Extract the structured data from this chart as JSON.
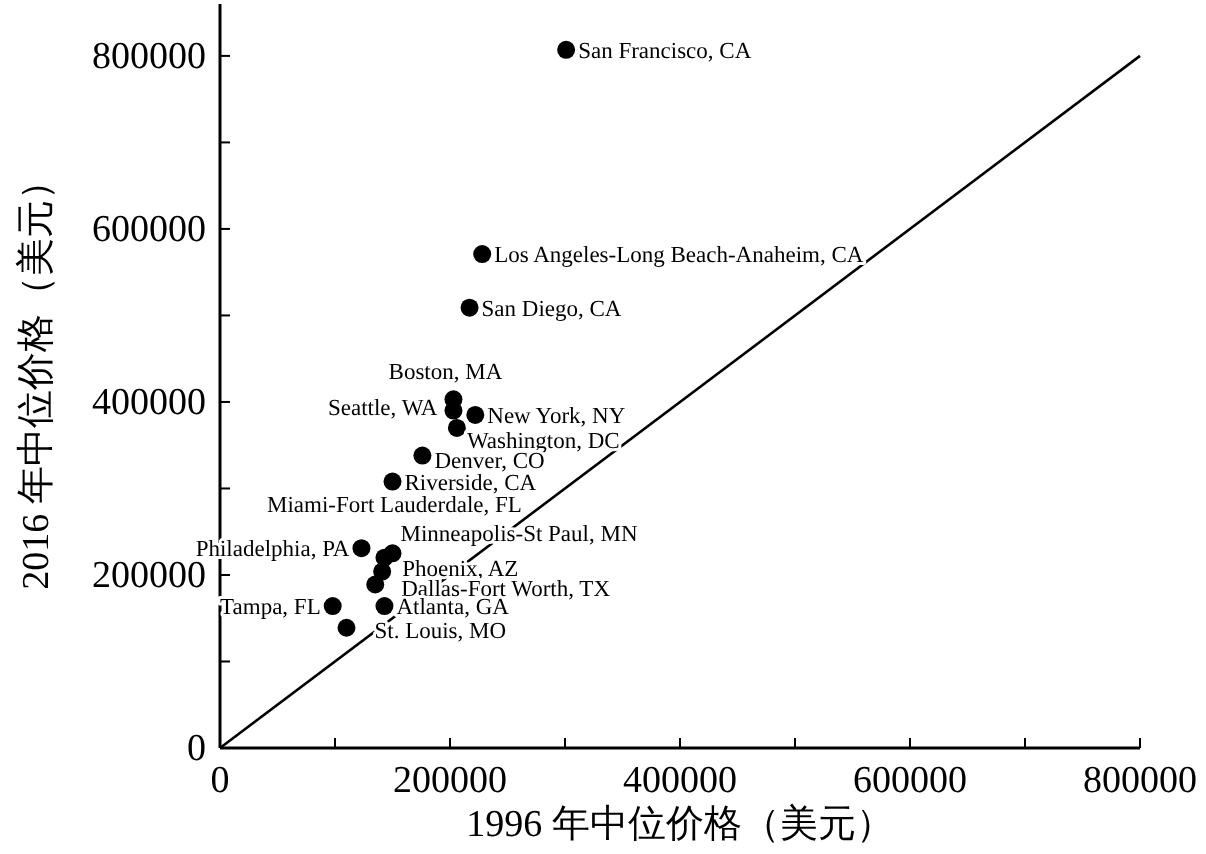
{
  "chart_data": {
    "type": "scatter",
    "xlabel": "1996 年中位价格（美元）",
    "ylabel": "2016 年中位价格（美元）",
    "xlim": [
      0,
      800000
    ],
    "ylim": [
      0,
      860000
    ],
    "xticks": [
      0,
      {
        "value": 100000,
        "label": null
      },
      200000,
      {
        "value": 300000,
        "label": null
      },
      400000,
      {
        "value": 500000,
        "label": null
      },
      600000,
      {
        "value": 700000,
        "label": null
      },
      800000
    ],
    "yticks": [
      0,
      {
        "value": 100000,
        "label": null
      },
      200000,
      {
        "value": 300000,
        "label": null
      },
      400000,
      {
        "value": 500000,
        "label": null
      },
      600000,
      {
        "value": 700000,
        "label": null
      },
      800000
    ],
    "grid": false,
    "marker": "circle",
    "series": [
      {
        "type": "scatter",
        "color": "#000000",
        "x": [
          301000,
          228000,
          217000,
          203000,
          203000,
          222000,
          206000,
          176000,
          150000,
          123000,
          150000,
          143000,
          141000,
          135000,
          98000,
          143000,
          110000
        ],
        "values": [
          807000,
          571000,
          509000,
          403000,
          390000,
          385000,
          370000,
          338000,
          308000,
          231000,
          225000,
          220000,
          204000,
          189000,
          164000,
          164000,
          139000
        ]
      },
      {
        "type": "line",
        "color": "#000000",
        "line_style": "solid",
        "marker": "none",
        "x": [
          0,
          800000
        ],
        "values": [
          0,
          800000
        ]
      }
    ],
    "annotations": [
      {
        "text": "San Francisco, CA",
        "x": 301000,
        "y": 807000
      },
      {
        "text": "Los Angeles-Long Beach-Anaheim, CA",
        "x": 228000,
        "y": 571000
      },
      {
        "text": "San Diego, CA",
        "x": 217000,
        "y": 509000
      },
      {
        "text": "Boston, MA",
        "x": 203000,
        "y": 403000
      },
      {
        "text": "Seattle, WA",
        "x": 203000,
        "y": 390000
      },
      {
        "text": "New York, NY",
        "x": 222000,
        "y": 385000
      },
      {
        "text": "Washington, DC",
        "x": 206000,
        "y": 370000
      },
      {
        "text": "Denver, CO",
        "x": 176000,
        "y": 338000
      },
      {
        "text": "Riverside, CA",
        "x": 150000,
        "y": 308000
      },
      {
        "text": "Philadelphia, PA",
        "x": 123000,
        "y": 231000
      },
      {
        "text": "Minneapolis-St Paul, MN",
        "x": 150000,
        "y": 225000
      },
      {
        "text": "Miami-Fort Lauderdale, FL",
        "x": 143000,
        "y": 220000
      },
      {
        "text": "Phoenix, AZ",
        "x": 141000,
        "y": 204000
      },
      {
        "text": "Dallas-Fort Worth, TX",
        "x": 135000,
        "y": 189000
      },
      {
        "text": "Tampa, FL",
        "x": 98000,
        "y": 164000
      },
      {
        "text": "Atlanta, GA",
        "x": 143000,
        "y": 164000
      },
      {
        "text": "St. Louis, MO",
        "x": 110000,
        "y": 139000
      }
    ]
  }
}
